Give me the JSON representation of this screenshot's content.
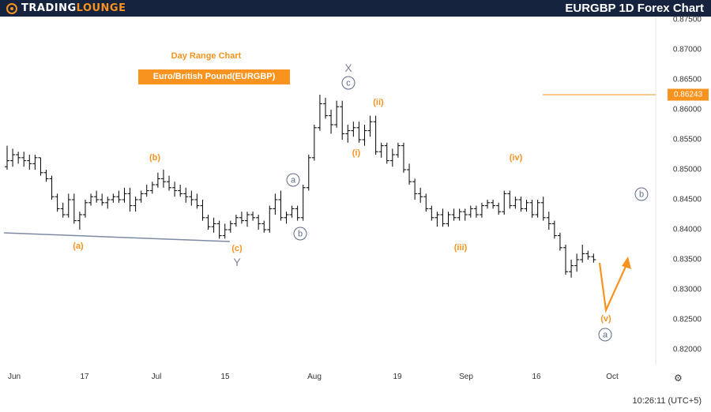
{
  "header": {
    "logo_part1": "Trading",
    "logo_part2": "Lounge",
    "title": "EURGBP 1D Forex Chart"
  },
  "annotations": {
    "subtitle": "Day Range Chart",
    "instrument": "Euro/British Pound(EURGBP)"
  },
  "footer": {
    "time": "10:26:11 (UTC+5)"
  },
  "chart_data": {
    "type": "bar",
    "symbol": "EURGBP",
    "timeframe": "1D",
    "y_ticks": [
      "0.87500",
      "0.87000",
      "0.86500",
      "0.86000",
      "0.85500",
      "0.85000",
      "0.84500",
      "0.84000",
      "0.83500",
      "0.83000",
      "0.82500",
      "0.82000"
    ],
    "current_price": "0.86243",
    "x_ticks": [
      "Jun",
      "17",
      "Jul",
      "15",
      "Aug",
      "19",
      "Sep",
      "16",
      "Oct"
    ],
    "colors": {
      "bars": "#000000",
      "waves": "#f7931e",
      "trendline": "#7e8aa3",
      "circled": "#5d6b85",
      "header": "#16233f"
    },
    "wave_labels": [
      {
        "text": "(a)",
        "style": "orange"
      },
      {
        "text": "(b)",
        "style": "orange"
      },
      {
        "text": "(c)",
        "style": "orange"
      },
      {
        "text": "Y",
        "style": "gray"
      },
      {
        "text": "a",
        "style": "circle"
      },
      {
        "text": "b",
        "style": "circle"
      },
      {
        "text": "X",
        "style": "gray"
      },
      {
        "text": "c",
        "style": "circle"
      },
      {
        "text": "(i)",
        "style": "orange"
      },
      {
        "text": "(ii)",
        "style": "orange"
      },
      {
        "text": "(iii)",
        "style": "orange"
      },
      {
        "text": "(iv)",
        "style": "orange"
      },
      {
        "text": "(v)",
        "style": "orange"
      },
      {
        "text": "a",
        "style": "circle"
      },
      {
        "text": "b",
        "style": "circle"
      }
    ],
    "ohlc": [
      [
        0.8505,
        0.854,
        0.85,
        0.8515
      ],
      [
        0.8515,
        0.8535,
        0.8505,
        0.8525
      ],
      [
        0.8525,
        0.853,
        0.851,
        0.852
      ],
      [
        0.852,
        0.853,
        0.8505,
        0.8515
      ],
      [
        0.8515,
        0.8525,
        0.85,
        0.851
      ],
      [
        0.851,
        0.8525,
        0.85,
        0.852
      ],
      [
        0.852,
        0.852,
        0.849,
        0.8495
      ],
      [
        0.8495,
        0.85,
        0.848,
        0.8485
      ],
      [
        0.8485,
        0.849,
        0.845,
        0.8455
      ],
      [
        0.8455,
        0.846,
        0.843,
        0.8435
      ],
      [
        0.8435,
        0.8445,
        0.842,
        0.8425
      ],
      [
        0.8425,
        0.846,
        0.842,
        0.845
      ],
      [
        0.845,
        0.846,
        0.841,
        0.8415
      ],
      [
        0.8415,
        0.843,
        0.84,
        0.8425
      ],
      [
        0.8425,
        0.845,
        0.842,
        0.8445
      ],
      [
        0.8445,
        0.846,
        0.844,
        0.8455
      ],
      [
        0.8455,
        0.8465,
        0.8445,
        0.845
      ],
      [
        0.845,
        0.846,
        0.844,
        0.8445
      ],
      [
        0.8445,
        0.8455,
        0.8435,
        0.845
      ],
      [
        0.845,
        0.846,
        0.8445,
        0.8455
      ],
      [
        0.8455,
        0.8465,
        0.8445,
        0.845
      ],
      [
        0.845,
        0.847,
        0.8445,
        0.846
      ],
      [
        0.846,
        0.847,
        0.843,
        0.844
      ],
      [
        0.844,
        0.8455,
        0.843,
        0.845
      ],
      [
        0.845,
        0.8465,
        0.8445,
        0.846
      ],
      [
        0.846,
        0.8475,
        0.8455,
        0.8465
      ],
      [
        0.8465,
        0.848,
        0.846,
        0.8475
      ],
      [
        0.8475,
        0.8495,
        0.847,
        0.8485
      ],
      [
        0.8485,
        0.85,
        0.847,
        0.848
      ],
      [
        0.848,
        0.849,
        0.8465,
        0.847
      ],
      [
        0.847,
        0.848,
        0.8455,
        0.8465
      ],
      [
        0.8465,
        0.8475,
        0.8455,
        0.846
      ],
      [
        0.846,
        0.847,
        0.8445,
        0.8455
      ],
      [
        0.8455,
        0.8465,
        0.844,
        0.845
      ],
      [
        0.845,
        0.846,
        0.8435,
        0.844
      ],
      [
        0.844,
        0.845,
        0.8415,
        0.842
      ],
      [
        0.842,
        0.8425,
        0.84,
        0.8405
      ],
      [
        0.8405,
        0.842,
        0.8395,
        0.841
      ],
      [
        0.841,
        0.8415,
        0.8385,
        0.839
      ],
      [
        0.839,
        0.841,
        0.8385,
        0.84
      ],
      [
        0.84,
        0.8415,
        0.8395,
        0.841
      ],
      [
        0.841,
        0.8425,
        0.8405,
        0.842
      ],
      [
        0.842,
        0.843,
        0.841,
        0.8415
      ],
      [
        0.8415,
        0.843,
        0.8405,
        0.8425
      ],
      [
        0.8425,
        0.843,
        0.8415,
        0.842
      ],
      [
        0.842,
        0.8425,
        0.84,
        0.841
      ],
      [
        0.841,
        0.8415,
        0.8395,
        0.84
      ],
      [
        0.84,
        0.844,
        0.8395,
        0.8435
      ],
      [
        0.8435,
        0.846,
        0.8425,
        0.845
      ],
      [
        0.845,
        0.8465,
        0.8415,
        0.842
      ],
      [
        0.842,
        0.843,
        0.841,
        0.8425
      ],
      [
        0.8425,
        0.844,
        0.842,
        0.8435
      ],
      [
        0.8435,
        0.844,
        0.8415,
        0.842
      ],
      [
        0.842,
        0.8475,
        0.8415,
        0.847
      ],
      [
        0.847,
        0.8525,
        0.8465,
        0.852
      ],
      [
        0.852,
        0.8575,
        0.8515,
        0.857
      ],
      [
        0.857,
        0.8625,
        0.8565,
        0.861
      ],
      [
        0.861,
        0.862,
        0.8585,
        0.859
      ],
      [
        0.859,
        0.86,
        0.856,
        0.8575
      ],
      [
        0.8575,
        0.8615,
        0.857,
        0.8605
      ],
      [
        0.8605,
        0.8615,
        0.855,
        0.856
      ],
      [
        0.856,
        0.8575,
        0.8545,
        0.8565
      ],
      [
        0.8565,
        0.858,
        0.8555,
        0.857
      ],
      [
        0.857,
        0.858,
        0.8545,
        0.855
      ],
      [
        0.855,
        0.8575,
        0.854,
        0.8565
      ],
      [
        0.8565,
        0.859,
        0.8555,
        0.858
      ],
      [
        0.858,
        0.859,
        0.8525,
        0.853
      ],
      [
        0.853,
        0.8545,
        0.852,
        0.854
      ],
      [
        0.854,
        0.8545,
        0.851,
        0.8515
      ],
      [
        0.8515,
        0.8535,
        0.8505,
        0.8525
      ],
      [
        0.8525,
        0.8545,
        0.852,
        0.854
      ],
      [
        0.854,
        0.8545,
        0.8495,
        0.85
      ],
      [
        0.85,
        0.851,
        0.8475,
        0.848
      ],
      [
        0.848,
        0.8485,
        0.845,
        0.846
      ],
      [
        0.846,
        0.847,
        0.8445,
        0.8455
      ],
      [
        0.8455,
        0.846,
        0.843,
        0.8435
      ],
      [
        0.8435,
        0.844,
        0.8415,
        0.842
      ],
      [
        0.842,
        0.843,
        0.8405,
        0.8425
      ],
      [
        0.8425,
        0.8435,
        0.8405,
        0.841
      ],
      [
        0.841,
        0.843,
        0.8405,
        0.8425
      ],
      [
        0.8425,
        0.8435,
        0.8415,
        0.842
      ],
      [
        0.842,
        0.8435,
        0.8415,
        0.843
      ],
      [
        0.843,
        0.8435,
        0.8415,
        0.8425
      ],
      [
        0.8425,
        0.844,
        0.842,
        0.8435
      ],
      [
        0.8435,
        0.844,
        0.842,
        0.8425
      ],
      [
        0.8425,
        0.8445,
        0.842,
        0.844
      ],
      [
        0.844,
        0.845,
        0.8435,
        0.8445
      ],
      [
        0.8445,
        0.845,
        0.8435,
        0.844
      ],
      [
        0.844,
        0.8445,
        0.8425,
        0.843
      ],
      [
        0.843,
        0.8465,
        0.8425,
        0.846
      ],
      [
        0.846,
        0.8465,
        0.8435,
        0.844
      ],
      [
        0.844,
        0.8455,
        0.8435,
        0.845
      ],
      [
        0.845,
        0.8455,
        0.843,
        0.8435
      ],
      [
        0.8435,
        0.845,
        0.843,
        0.8445
      ],
      [
        0.8445,
        0.845,
        0.842,
        0.8425
      ],
      [
        0.8425,
        0.845,
        0.842,
        0.8445
      ],
      [
        0.8445,
        0.8455,
        0.8415,
        0.842
      ],
      [
        0.842,
        0.843,
        0.84,
        0.841
      ],
      [
        0.841,
        0.8415,
        0.8385,
        0.839
      ],
      [
        0.839,
        0.8395,
        0.8365,
        0.837
      ],
      [
        0.837,
        0.8375,
        0.8325,
        0.833
      ],
      [
        0.833,
        0.835,
        0.832,
        0.834
      ],
      [
        0.834,
        0.836,
        0.833,
        0.835
      ],
      [
        0.835,
        0.8375,
        0.8345,
        0.836
      ],
      [
        0.836,
        0.8365,
        0.835,
        0.8355
      ],
      [
        0.8355,
        0.836,
        0.8345,
        0.835
      ]
    ]
  }
}
